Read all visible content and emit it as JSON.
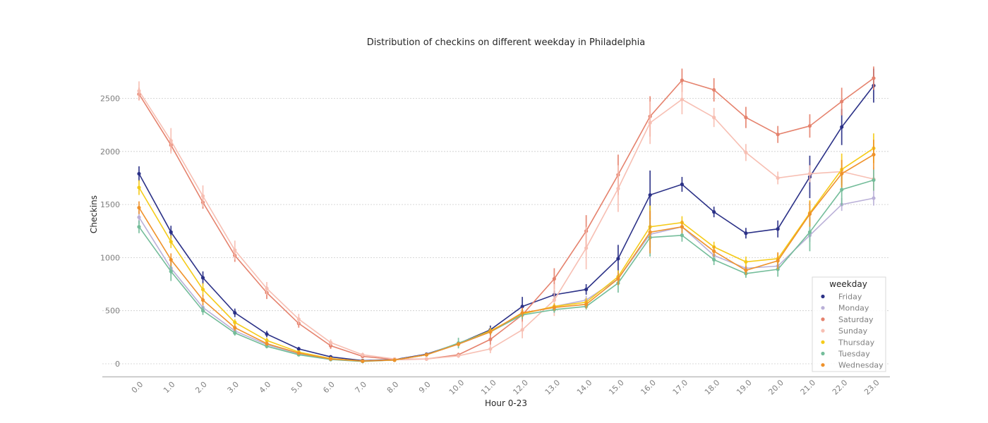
{
  "chart_data": {
    "type": "line",
    "title": "Distribution of checkins on different weekday in Philadelphia",
    "xlabel": "Hour 0-23",
    "ylabel": "Checkins",
    "categories": [
      "0.0",
      "1.0",
      "2.0",
      "3.0",
      "4.0",
      "5.0",
      "6.0",
      "7.0",
      "8.0",
      "9.0",
      "10.0",
      "11.0",
      "12.0",
      "13.0",
      "14.0",
      "15.0",
      "16.0",
      "17.0",
      "18.0",
      "19.0",
      "20.0",
      "21.0",
      "22.0",
      "23.0"
    ],
    "ylim": [
      -120,
      2850
    ],
    "yticks": [
      0,
      500,
      1000,
      1500,
      2000,
      2500
    ],
    "grid": "horizontal",
    "legend": {
      "title": "weekday",
      "placement": "lower-right"
    },
    "series": [
      {
        "name": "Friday",
        "color": "#2b3187",
        "values": [
          1790,
          1240,
          810,
          480,
          280,
          140,
          65,
          30,
          40,
          90,
          190,
          320,
          540,
          650,
          700,
          990,
          1590,
          1690,
          1430,
          1230,
          1270,
          1760,
          2230,
          2620
        ],
        "err": [
          70,
          60,
          60,
          40,
          30,
          20,
          10,
          8,
          8,
          12,
          20,
          40,
          90,
          40,
          50,
          130,
          230,
          70,
          50,
          50,
          80,
          200,
          170,
          160
        ]
      },
      {
        "name": "Monday",
        "color": "#bab0d8",
        "values": [
          1380,
          900,
          530,
          310,
          180,
          95,
          45,
          25,
          35,
          85,
          185,
          300,
          470,
          540,
          600,
          800,
          1220,
          1290,
          1020,
          900,
          920,
          1210,
          1500,
          1560
        ],
        "err": [
          60,
          60,
          40,
          30,
          20,
          15,
          10,
          6,
          8,
          12,
          20,
          30,
          40,
          30,
          40,
          60,
          120,
          60,
          50,
          40,
          40,
          60,
          60,
          70
        ]
      },
      {
        "name": "Saturday",
        "color": "#e5826d",
        "values": [
          2540,
          2060,
          1520,
          1020,
          670,
          380,
          170,
          70,
          40,
          45,
          85,
          230,
          460,
          800,
          1250,
          1780,
          2330,
          2670,
          2580,
          2320,
          2160,
          2240,
          2470,
          2690
        ],
        "err": [
          60,
          60,
          60,
          60,
          60,
          40,
          30,
          15,
          8,
          10,
          20,
          50,
          70,
          100,
          150,
          190,
          190,
          110,
          110,
          100,
          80,
          110,
          130,
          110
        ]
      },
      {
        "name": "Sunday",
        "color": "#f7bfb3",
        "values": [
          2570,
          2100,
          1580,
          1070,
          710,
          420,
          200,
          85,
          45,
          45,
          75,
          140,
          320,
          600,
          1090,
          1650,
          2270,
          2490,
          2320,
          1990,
          1750,
          1790,
          1810,
          1740
        ],
        "err": [
          90,
          120,
          100,
          90,
          60,
          50,
          30,
          20,
          8,
          10,
          20,
          40,
          80,
          150,
          200,
          220,
          200,
          140,
          90,
          80,
          60,
          80,
          110,
          110
        ]
      },
      {
        "name": "Thursday",
        "color": "#f5cb19",
        "values": [
          1660,
          1150,
          700,
          390,
          220,
          110,
          50,
          25,
          35,
          85,
          190,
          310,
          470,
          540,
          580,
          820,
          1290,
          1330,
          1100,
          960,
          990,
          1420,
          1830,
          2030
        ],
        "err": [
          70,
          60,
          60,
          30,
          25,
          15,
          10,
          6,
          8,
          12,
          20,
          30,
          40,
          30,
          40,
          60,
          200,
          60,
          50,
          50,
          50,
          120,
          150,
          140
        ]
      },
      {
        "name": "Tuesday",
        "color": "#74bd9a",
        "values": [
          1290,
          870,
          500,
          290,
          165,
          85,
          40,
          22,
          35,
          85,
          195,
          300,
          460,
          510,
          540,
          760,
          1190,
          1210,
          980,
          850,
          890,
          1240,
          1640,
          1730
        ],
        "err": [
          60,
          90,
          40,
          25,
          20,
          12,
          8,
          6,
          8,
          12,
          50,
          30,
          40,
          30,
          30,
          90,
          180,
          60,
          50,
          40,
          70,
          180,
          150,
          100
        ]
      },
      {
        "name": "Wednesday",
        "color": "#ef922b",
        "values": [
          1470,
          980,
          600,
          340,
          190,
          100,
          45,
          25,
          35,
          85,
          185,
          300,
          480,
          530,
          560,
          800,
          1240,
          1290,
          1060,
          880,
          970,
          1410,
          1790,
          1970
        ],
        "err": [
          60,
          60,
          50,
          30,
          20,
          12,
          8,
          6,
          8,
          12,
          20,
          30,
          40,
          30,
          40,
          60,
          200,
          60,
          50,
          40,
          80,
          120,
          130,
          140
        ]
      }
    ]
  }
}
